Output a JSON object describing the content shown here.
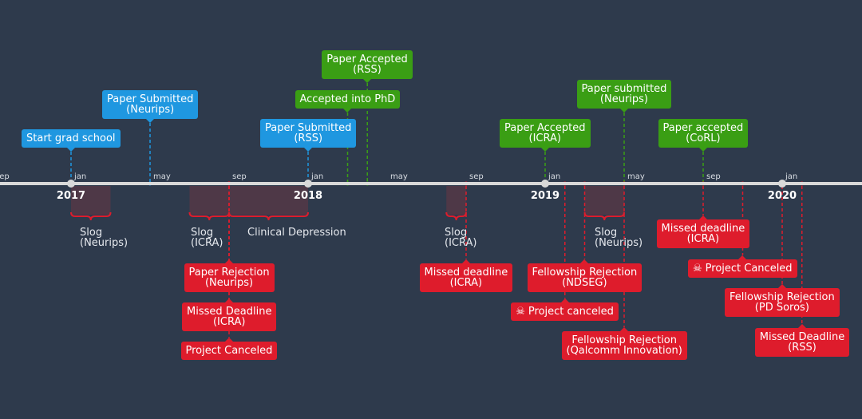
{
  "colors": {
    "background": "#2e3a4c",
    "axis": "#d9d9d9",
    "submitted": "#1f97e0",
    "accepted": "#3a9e14",
    "bad": "#de1c2c",
    "period_fill": "#5a3846",
    "brace": "#de1c2c"
  },
  "axis": {
    "months": [
      {
        "label": "sep",
        "date": "2016-09"
      },
      {
        "label": "jan",
        "date": "2017-01"
      },
      {
        "label": "may",
        "date": "2017-05"
      },
      {
        "label": "sep",
        "date": "2017-09"
      },
      {
        "label": "jan",
        "date": "2018-01"
      },
      {
        "label": "may",
        "date": "2018-05"
      },
      {
        "label": "sep",
        "date": "2018-09"
      },
      {
        "label": "jan",
        "date": "2019-01"
      },
      {
        "label": "may",
        "date": "2019-05"
      },
      {
        "label": "sep",
        "date": "2019-09"
      },
      {
        "label": "jan",
        "date": "2020-01"
      }
    ],
    "years": [
      {
        "label": "2017",
        "date": "2017-01"
      },
      {
        "label": "2018",
        "date": "2018-01"
      },
      {
        "label": "2019",
        "date": "2019-01"
      },
      {
        "label": "2020",
        "date": "2020-01"
      }
    ]
  },
  "events_above": [
    {
      "line1": "Start grad school",
      "line2": "",
      "kind": "submitted",
      "date": "2017-01"
    },
    {
      "line1": "Paper Submitted",
      "line2": "(Neurips)",
      "kind": "submitted",
      "date": "2017-05"
    },
    {
      "line1": "Paper Submitted",
      "line2": "(RSS)",
      "kind": "submitted",
      "date": "2018-01"
    },
    {
      "line1": "Accepted into PhD",
      "line2": "",
      "kind": "accepted",
      "date": "2018-03"
    },
    {
      "line1": "Paper Accepted",
      "line2": "(RSS)",
      "kind": "accepted",
      "date": "2018-04"
    },
    {
      "line1": "Paper Accepted",
      "line2": "(ICRA)",
      "kind": "accepted",
      "date": "2019-01"
    },
    {
      "line1": "Paper submitted",
      "line2": "(Neurips)",
      "kind": "accepted",
      "date": "2019-05"
    },
    {
      "line1": "Paper accepted",
      "line2": "(CoRL)",
      "kind": "accepted",
      "date": "2019-09"
    }
  ],
  "events_below": [
    {
      "line1": "Paper Rejection",
      "line2": "(Neurips)",
      "icon": "",
      "date": "2017-09"
    },
    {
      "line1": "Missed Deadline",
      "line2": "(ICRA)",
      "icon": "",
      "date": "2017-09"
    },
    {
      "line1": "Project Canceled",
      "line2": "",
      "icon": "",
      "date": "2017-09"
    },
    {
      "line1": "Missed deadline",
      "line2": "(ICRA)",
      "icon": "",
      "date": "2018-09"
    },
    {
      "line1": "Fellowship Rejection",
      "line2": "(NDSEG)",
      "icon": "",
      "date": "2019-03"
    },
    {
      "line1": "Project canceled",
      "line2": "",
      "icon": "skull-icon",
      "date": "2019-02"
    },
    {
      "line1": "Fellowship Rejection",
      "line2": "(Qalcomm Innovation)",
      "icon": "",
      "date": "2019-05"
    },
    {
      "line1": "Missed deadline",
      "line2": "(ICRA)",
      "icon": "",
      "date": "2019-09"
    },
    {
      "line1": "Project Canceled",
      "line2": "",
      "icon": "skull-icon",
      "date": "2019-11"
    },
    {
      "line1": "Fellowship Rejection",
      "line2": "(PD Soros)",
      "icon": "",
      "date": "2020-01"
    },
    {
      "line1": "Missed Deadline",
      "line2": "(RSS)",
      "icon": "",
      "date": "2020-02"
    }
  ],
  "periods": [
    {
      "line1": "Slog",
      "line2": "(Neurips)",
      "start": "2017-01",
      "end": "2017-03"
    },
    {
      "line1": "Slog",
      "line2": "(ICRA)",
      "start": "2017-07",
      "end": "2017-09"
    },
    {
      "line1": "Clinical Depression",
      "line2": "",
      "start": "2017-09",
      "end": "2018-01"
    },
    {
      "line1": "Slog",
      "line2": "(ICRA)",
      "start": "2018-08",
      "end": "2018-09"
    },
    {
      "line1": "Slog",
      "line2": "(Neurips)",
      "start": "2019-03",
      "end": "2019-05"
    }
  ]
}
